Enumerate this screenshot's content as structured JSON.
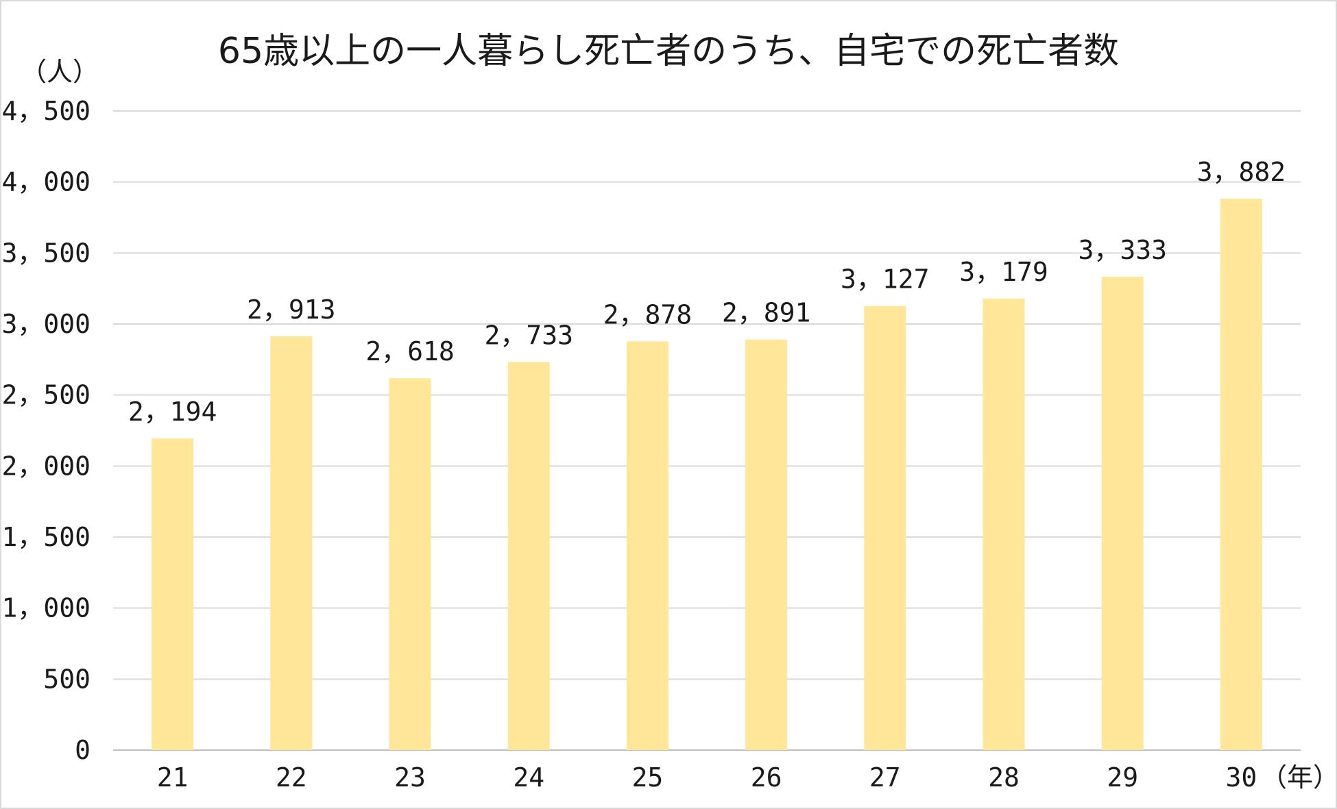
{
  "chart_data": {
    "type": "bar",
    "title": "65歳以上の一人暮らし死亡者のうち、自宅での死亡者数",
    "ylabel": "（人）",
    "xlabel": "（年）",
    "categories": [
      "21",
      "22",
      "23",
      "24",
      "25",
      "26",
      "27",
      "28",
      "29",
      "30"
    ],
    "values": [
      2194,
      2913,
      2618,
      2733,
      2878,
      2891,
      3127,
      3179,
      3333,
      3882
    ],
    "data_labels": [
      "2，194",
      "2，913",
      "2，618",
      "2，733",
      "2，878",
      "2，891",
      "3，127",
      "3，179",
      "3，333",
      "3，882"
    ],
    "yticks": [
      0,
      500,
      1000,
      1500,
      2000,
      2500,
      3000,
      3500,
      4000,
      4500
    ],
    "ytick_labels": [
      "0",
      "500",
      "1，000",
      "1，500",
      "2，000",
      "2，500",
      "3，000",
      "3，500",
      "4，000",
      "4，500"
    ],
    "ylim": [
      0,
      4500
    ],
    "grid": true,
    "legend": "none",
    "colors": {
      "bar": "#FFE699",
      "grid": "#D9D9D9",
      "text": "#1A1A1A",
      "border": "#D9D9D9"
    }
  }
}
